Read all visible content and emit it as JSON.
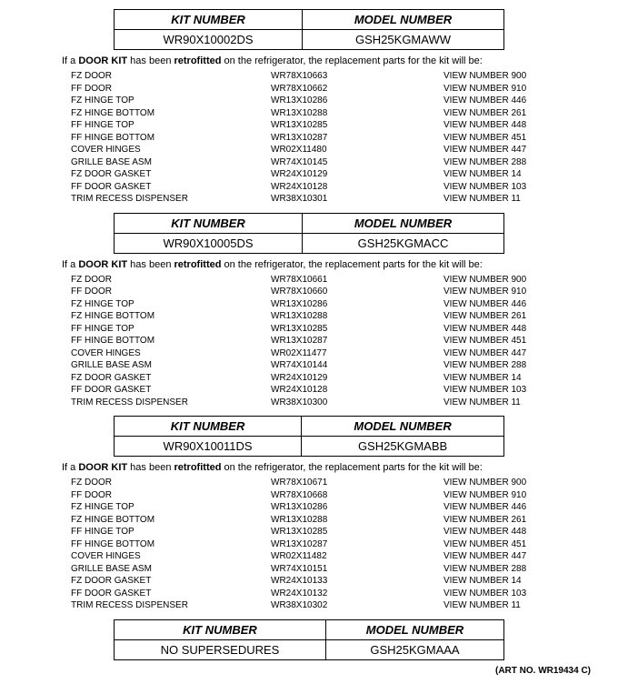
{
  "text_colors": {
    "main": "#000000"
  },
  "background_color": "#ffffff",
  "header_labels": {
    "kit": "KIT NUMBER",
    "model": "MODEL NUMBER"
  },
  "intro_parts": {
    "p1": "If a ",
    "b1": "DOOR KIT",
    "p2": " has been ",
    "b2": "retrofitted",
    "p3": " on the refrigerator, the replacement parts for the kit will be:"
  },
  "sections": [
    {
      "kit_number": "WR90X10002DS",
      "model_number": "GSH25KGMAWW",
      "show_parts": true,
      "parts": [
        {
          "name": "FZ DOOR",
          "part": "WR78X10663",
          "view": "VIEW NUMBER 900"
        },
        {
          "name": "FF DOOR",
          "part": "WR78X10662",
          "view": "VIEW NUMBER 910"
        },
        {
          "name": "FZ HINGE TOP",
          "part": "WR13X10286",
          "view": "VIEW NUMBER 446"
        },
        {
          "name": "FZ HINGE BOTTOM",
          "part": "WR13X10288",
          "view": "VIEW NUMBER 261"
        },
        {
          "name": "FF HINGE TOP",
          "part": "WR13X10285",
          "view": "VIEW NUMBER 448"
        },
        {
          "name": "FF HINGE BOTTOM",
          "part": "WR13X10287",
          "view": "VIEW NUMBER 451"
        },
        {
          "name": "COVER HINGES",
          "part": "WR02X11480",
          "view": "VIEW NUMBER 447"
        },
        {
          "name": "GRILLE BASE ASM",
          "part": "WR74X10145",
          "view": "VIEW NUMBER 288"
        },
        {
          "name": "FZ DOOR GASKET",
          "part": "WR24X10129",
          "view": "VIEW NUMBER 14"
        },
        {
          "name": "FF DOOR GASKET",
          "part": "WR24X10128",
          "view": "VIEW NUMBER 103"
        },
        {
          "name": "TRIM RECESS DISPENSER",
          "part": "WR38X10301",
          "view": "VIEW NUMBER 11"
        }
      ]
    },
    {
      "kit_number": "WR90X10005DS",
      "model_number": "GSH25KGMACC",
      "show_parts": true,
      "parts": [
        {
          "name": "FZ DOOR",
          "part": "WR78X10661",
          "view": "VIEW NUMBER 900"
        },
        {
          "name": "FF DOOR",
          "part": "WR78X10660",
          "view": "VIEW NUMBER 910"
        },
        {
          "name": "FZ HINGE TOP",
          "part": "WR13X10286",
          "view": "VIEW NUMBER 446"
        },
        {
          "name": "FZ HINGE BOTTOM",
          "part": "WR13X10288",
          "view": "VIEW NUMBER 261"
        },
        {
          "name": "FF HINGE TOP",
          "part": "WR13X10285",
          "view": "VIEW NUMBER 448"
        },
        {
          "name": "FF HINGE BOTTOM",
          "part": "WR13X10287",
          "view": "VIEW NUMBER 451"
        },
        {
          "name": "COVER HINGES",
          "part": "WR02X11477",
          "view": "VIEW NUMBER 447"
        },
        {
          "name": "GRILLE BASE ASM",
          "part": "WR74X10144",
          "view": "VIEW NUMBER 288"
        },
        {
          "name": "FZ DOOR GASKET",
          "part": "WR24X10129",
          "view": "VIEW NUMBER 14"
        },
        {
          "name": "FF DOOR GASKET",
          "part": "WR24X10128",
          "view": "VIEW NUMBER 103"
        },
        {
          "name": "TRIM RECESS DISPENSER",
          "part": "WR38X10300",
          "view": "VIEW NUMBER 11"
        }
      ]
    },
    {
      "kit_number": "WR90X10011DS",
      "model_number": "GSH25KGMABB",
      "show_parts": true,
      "parts": [
        {
          "name": "FZ DOOR",
          "part": "WR78X10671",
          "view": "VIEW NUMBER 900"
        },
        {
          "name": "FF DOOR",
          "part": "WR78X10668",
          "view": "VIEW NUMBER 910"
        },
        {
          "name": "FZ HINGE TOP",
          "part": "WR13X10286",
          "view": "VIEW NUMBER 446"
        },
        {
          "name": "FZ HINGE BOTTOM",
          "part": "WR13X10288",
          "view": "VIEW NUMBER 261"
        },
        {
          "name": "FF HINGE TOP",
          "part": "WR13X10285",
          "view": "VIEW NUMBER 448"
        },
        {
          "name": "FF HINGE BOTTOM",
          "part": "WR13X10287",
          "view": "VIEW NUMBER 451"
        },
        {
          "name": "COVER HINGES",
          "part": "WR02X11482",
          "view": "VIEW NUMBER 447"
        },
        {
          "name": "GRILLE BASE ASM",
          "part": "WR74X10151",
          "view": "VIEW NUMBER 288"
        },
        {
          "name": "FZ DOOR GASKET",
          "part": "WR24X10133",
          "view": "VIEW NUMBER 14"
        },
        {
          "name": "FF DOOR GASKET",
          "part": "WR24X10132",
          "view": "VIEW NUMBER 103"
        },
        {
          "name": "TRIM RECESS DISPENSER",
          "part": "WR38X10302",
          "view": "VIEW NUMBER 11"
        }
      ]
    },
    {
      "kit_number": "NO SUPERSEDURES",
      "model_number": "GSH25KGMAAA",
      "show_parts": false,
      "parts": []
    }
  ],
  "art_no": "(ART NO. WR19434 C)"
}
